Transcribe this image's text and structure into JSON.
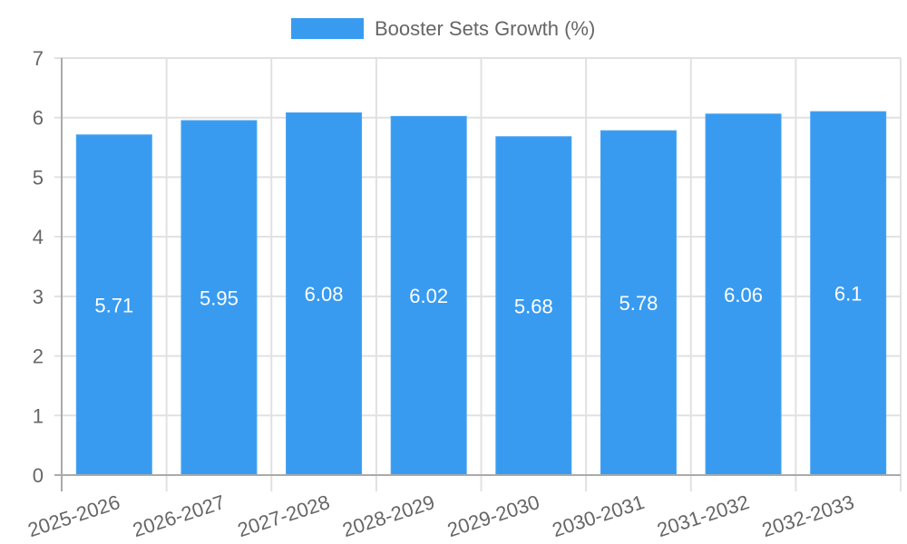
{
  "chart_data": {
    "type": "bar",
    "title": "",
    "xlabel": "",
    "ylabel": "",
    "ylim": [
      0,
      7
    ],
    "yticks": [
      0,
      1,
      2,
      3,
      4,
      5,
      6,
      7
    ],
    "grid": true,
    "legend_position": "top",
    "categories": [
      "2025-2026",
      "2026-2027",
      "2027-2028",
      "2028-2029",
      "2029-2030",
      "2030-2031",
      "2031-2032",
      "2032-2033"
    ],
    "series": [
      {
        "name": "Booster Sets Growth (%)",
        "color": "#389bf0",
        "values": [
          5.71,
          5.95,
          6.08,
          6.02,
          5.68,
          5.78,
          6.06,
          6.1
        ]
      }
    ]
  },
  "legend": {
    "label": "Booster Sets Growth (%)"
  }
}
